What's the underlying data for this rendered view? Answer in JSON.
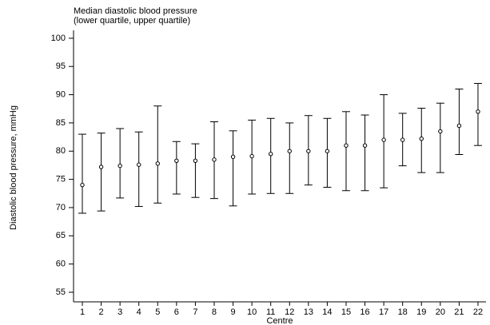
{
  "chart_data": {
    "type": "errorbar",
    "title": "Median diastolic blood pressure",
    "subtitle": "(lower quartile, upper quartile)",
    "x_label": "Centre",
    "y_label": "Diastolic blood pressure, mmHg",
    "categories": [
      "1",
      "2",
      "3",
      "4",
      "5",
      "6",
      "7",
      "8",
      "9",
      "10",
      "11",
      "12",
      "13",
      "14",
      "15",
      "16",
      "17",
      "18",
      "19",
      "20",
      "21",
      "22"
    ],
    "values": [
      74,
      77.2,
      77.4,
      77.6,
      77.8,
      78.3,
      78.3,
      78.5,
      79,
      79.1,
      79.5,
      80,
      80,
      80,
      81,
      81,
      82,
      82,
      82.2,
      83.5,
      84.5,
      87
    ],
    "lower": [
      69,
      69.4,
      71.7,
      70.2,
      70.8,
      72.4,
      71.8,
      71.6,
      70.3,
      72.4,
      72.5,
      72.5,
      74,
      73.6,
      73,
      73,
      73.5,
      77.4,
      76.2,
      76.2,
      79.4,
      81
    ],
    "upper": [
      83,
      83.2,
      84,
      83.4,
      88,
      81.7,
      81.3,
      85.2,
      83.6,
      85.5,
      85.8,
      85,
      86.3,
      85.8,
      87,
      86.4,
      90,
      86.7,
      87.6,
      88.5,
      91,
      92
    ],
    "color": "#000000",
    "ylim": [
      53.3,
      101.4
    ],
    "yticks": [
      55,
      60,
      65,
      70,
      75,
      80,
      85,
      90,
      95,
      100
    ]
  }
}
